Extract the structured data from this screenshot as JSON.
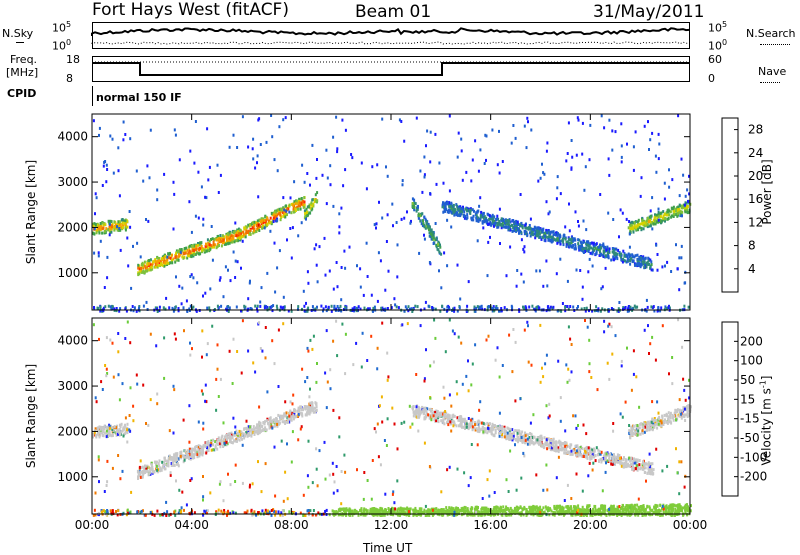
{
  "header": {
    "station": "Fort Hays West (fitACF)",
    "beam": "Beam 01",
    "date": "31/May/2011"
  },
  "top_panels": {
    "nsky_label": "N.Sky",
    "nsearch_label": "N.Search",
    "freq_label_1": "Freq.",
    "freq_label_2": "[MHz]",
    "nave_label": "Nave",
    "cpid_label": "CPID",
    "cpid_value": "normal 150 IF",
    "nsky_ticks": [
      "10^5",
      "10^0"
    ],
    "nsearch_ticks": [
      "10^5",
      "10^0"
    ],
    "freq_ticks": [
      "18",
      "8"
    ],
    "nave_ticks": [
      "60",
      "0"
    ]
  },
  "chart_data": [
    {
      "type": "heatmap",
      "title": "",
      "xlabel": "Time UT",
      "ylabel": "Slant Range [km]",
      "x_ticks": [
        "00:00",
        "04:00",
        "08:00",
        "12:00",
        "16:00",
        "20:00",
        "00:00"
      ],
      "y_ticks": [
        1000,
        2000,
        3000,
        4000
      ],
      "ylim": [
        180,
        4500
      ],
      "xlim_hours": [
        0,
        24
      ],
      "colorbar": {
        "label": "Power [dB]",
        "ticks": [
          4,
          8,
          12,
          16,
          20,
          24,
          28
        ],
        "range": [
          0,
          30
        ],
        "colors": [
          "#1a1aff",
          "#1f5fd0",
          "#2e8a7a",
          "#3fa04a",
          "#7fc13a",
          "#d6d200",
          "#f5a000",
          "#f07000",
          "#ff2a00",
          "#e00000"
        ]
      },
      "features": [
        {
          "start_h": 0.0,
          "end_h": 1.4,
          "range_start": 2000,
          "range_end": 2100,
          "level": 22
        },
        {
          "start_h": 1.8,
          "end_h": 6.0,
          "range_start": 1100,
          "range_end": 1900,
          "level": 24
        },
        {
          "start_h": 6.0,
          "end_h": 8.5,
          "range_start": 1900,
          "range_end": 2600,
          "level": 26
        },
        {
          "start_h": 8.5,
          "end_h": 9.0,
          "range_start": 2300,
          "range_end": 2700,
          "level": 18
        },
        {
          "start_h": 12.8,
          "end_h": 14.0,
          "range_start": 2600,
          "range_end": 1500,
          "level": 12
        },
        {
          "start_h": 14.0,
          "end_h": 22.5,
          "range_start": 2500,
          "range_end": 1200,
          "level": 8
        },
        {
          "start_h": 21.5,
          "end_h": 24.0,
          "range_start": 2000,
          "range_end": 2500,
          "level": 18
        }
      ]
    },
    {
      "type": "heatmap",
      "title": "",
      "xlabel": "Time UT",
      "ylabel": "Slant Range [km]",
      "x_ticks": [
        "00:00",
        "04:00",
        "08:00",
        "12:00",
        "16:00",
        "20:00",
        "00:00"
      ],
      "y_ticks": [
        1000,
        2000,
        3000,
        4000
      ],
      "ylim": [
        180,
        4500
      ],
      "xlim_hours": [
        0,
        24
      ],
      "colorbar": {
        "label": "Velocity [m s^-1]",
        "ticks": [
          "200",
          "100",
          "50",
          "15",
          "-15",
          "-50",
          "-100",
          "-200"
        ],
        "colors": [
          "#1c1cff",
          "#1f6ad0",
          "#2e9a6a",
          "#6acc3a",
          "#c8c8c8",
          "#f0b400",
          "#f07800",
          "#ff3c00",
          "#e00000"
        ]
      },
      "features": [
        {
          "start_h": 0.0,
          "end_h": 1.4,
          "range_start": 2000,
          "range_end": 2100,
          "value": 0
        },
        {
          "start_h": 1.8,
          "end_h": 9.0,
          "range_start": 1100,
          "range_end": 2600,
          "value": 0
        },
        {
          "start_h": 12.8,
          "end_h": 22.5,
          "range_start": 2500,
          "range_end": 1200,
          "value": 0
        },
        {
          "start_h": 21.5,
          "end_h": 24.0,
          "range_start": 2000,
          "range_end": 2500,
          "value": 0
        },
        {
          "start_h": 9.5,
          "end_h": 24.0,
          "range_start": 200,
          "range_end": 300,
          "value": 30
        }
      ]
    }
  ],
  "colors": {
    "grey_scatter": "#c8c8c8",
    "ground_green": "#7fcc3a"
  }
}
